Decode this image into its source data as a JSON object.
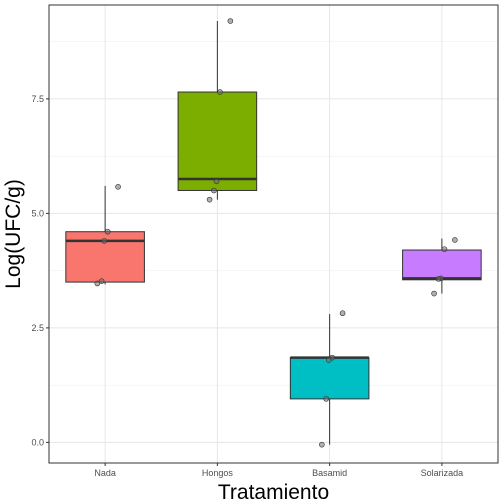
{
  "chart_data": {
    "type": "boxplot",
    "title": "",
    "xlabel": "Tratamiento",
    "ylabel": "Log(UFC/g)",
    "ylim": [
      -0.45,
      9.55
    ],
    "yticks": [
      0.0,
      2.5,
      5.0,
      7.5
    ],
    "ytick_labels": [
      "0.0",
      "2.5",
      "5.0",
      "7.5"
    ],
    "grid": true,
    "legend": "none",
    "categories": [
      "Nada",
      "Hongos",
      "Basamid",
      "Solarizada"
    ],
    "boxes": [
      {
        "category": "Nada",
        "color": "#F8766D",
        "whisker_low": 3.45,
        "q1": 3.5,
        "median": 4.4,
        "q3": 4.6,
        "whisker_high": 5.6
      },
      {
        "category": "Hongos",
        "color": "#7CAE00",
        "whisker_low": 5.3,
        "q1": 5.5,
        "median": 5.75,
        "q3": 7.65,
        "whisker_high": 9.2
      },
      {
        "category": "Basamid",
        "color": "#00BFC4",
        "whisker_low": -0.05,
        "q1": 0.95,
        "median": 1.85,
        "q3": 1.85,
        "whisker_high": 2.8
      },
      {
        "category": "Solarizada",
        "color": "#C77CFF",
        "whisker_low": 3.25,
        "q1": 3.55,
        "median": 3.58,
        "q3": 4.2,
        "whisker_high": 4.45
      }
    ],
    "points": [
      {
        "category": "Nada",
        "values": [
          5.58,
          4.6,
          4.4,
          3.52,
          3.47
        ]
      },
      {
        "category": "Hongos",
        "values": [
          9.2,
          7.65,
          5.7,
          5.5,
          5.3
        ]
      },
      {
        "category": "Basamid",
        "values": [
          2.82,
          1.85,
          1.8,
          0.95,
          -0.05
        ]
      },
      {
        "category": "Solarizada",
        "values": [
          4.42,
          4.22,
          3.58,
          3.57,
          3.25
        ]
      }
    ]
  }
}
